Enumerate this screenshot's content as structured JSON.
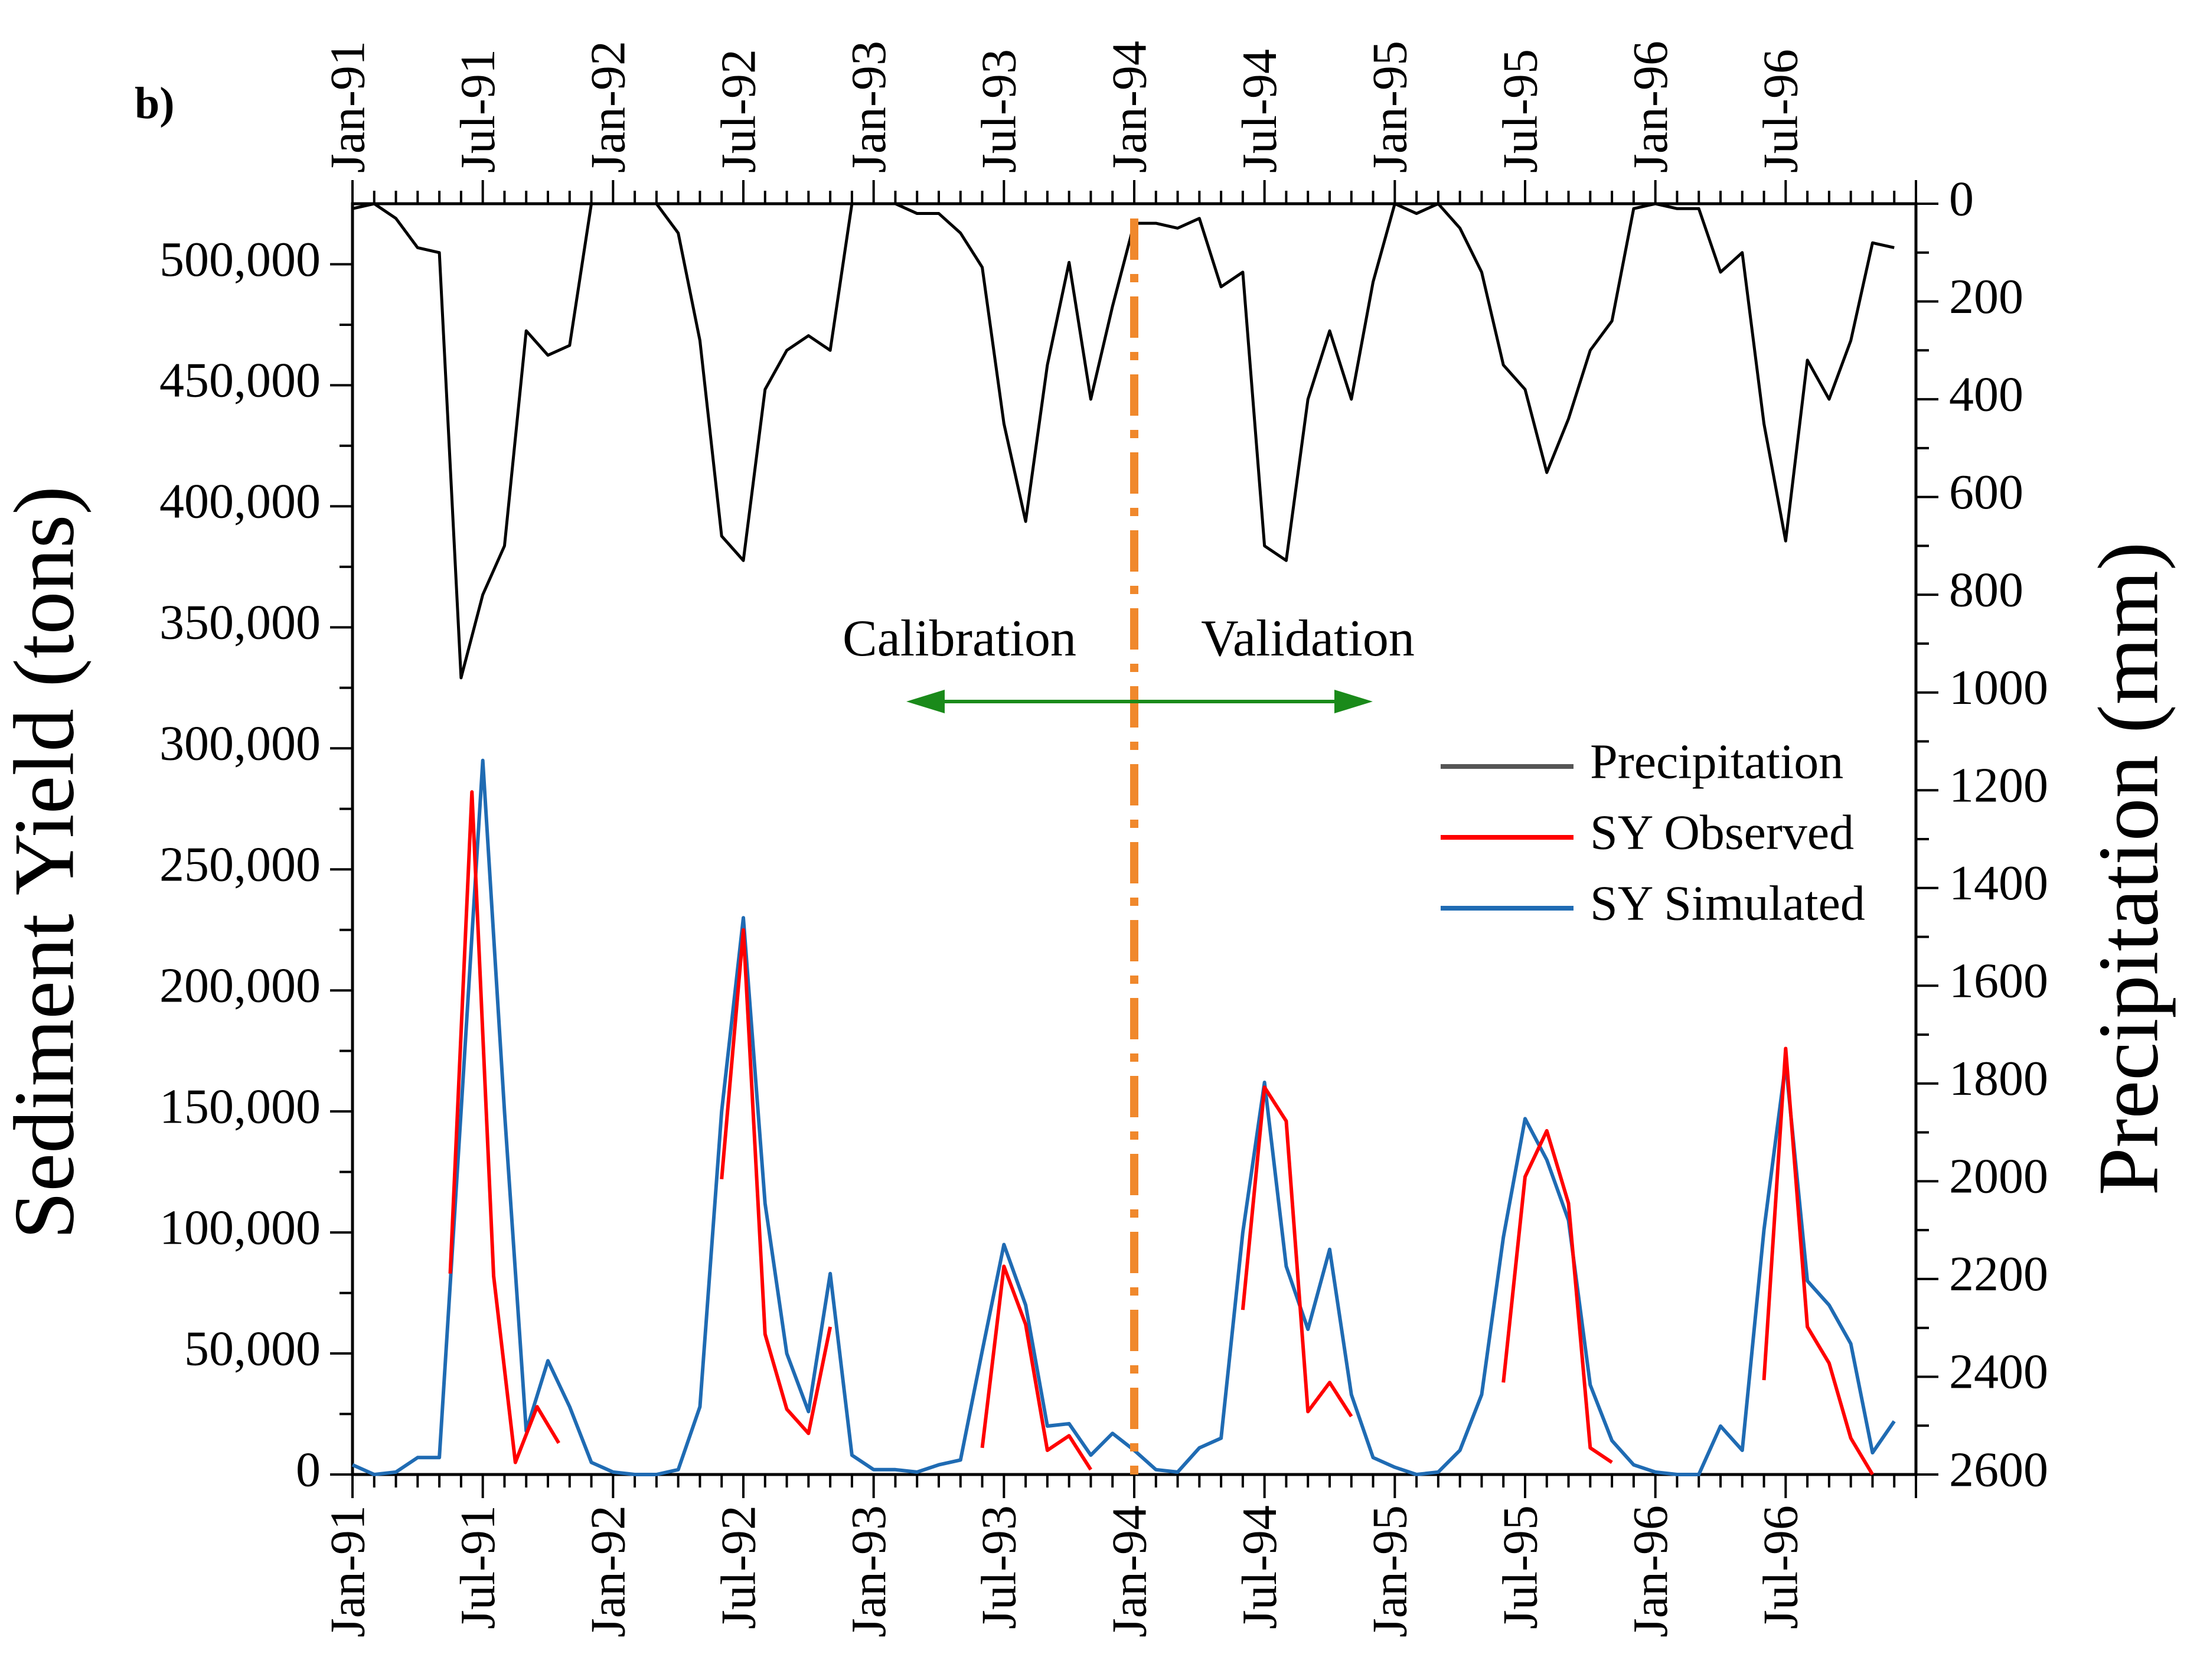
{
  "chart_data": {
    "type": "line",
    "panel_label": "b)",
    "x": [
      "Jan-91",
      "Feb-91",
      "Mar-91",
      "Apr-91",
      "May-91",
      "Jun-91",
      "Jul-91",
      "Aug-91",
      "Sep-91",
      "Oct-91",
      "Nov-91",
      "Dec-91",
      "Jan-92",
      "Feb-92",
      "Mar-92",
      "Apr-92",
      "May-92",
      "Jun-92",
      "Jul-92",
      "Aug-92",
      "Sep-92",
      "Oct-92",
      "Nov-92",
      "Dec-92",
      "Jan-93",
      "Feb-93",
      "Mar-93",
      "Apr-93",
      "May-93",
      "Jun-93",
      "Jul-93",
      "Aug-93",
      "Sep-93",
      "Oct-93",
      "Nov-93",
      "Dec-93",
      "Jan-94",
      "Feb-94",
      "Mar-94",
      "Apr-94",
      "May-94",
      "Jun-94",
      "Jul-94",
      "Aug-94",
      "Sep-94",
      "Oct-94",
      "Nov-94",
      "Dec-94",
      "Jan-95",
      "Feb-95",
      "Mar-95",
      "Apr-95",
      "May-95",
      "Jun-95",
      "Jul-95",
      "Aug-95",
      "Sep-95",
      "Oct-95",
      "Nov-95",
      "Dec-95",
      "Jan-96",
      "Feb-96",
      "Mar-96",
      "Apr-96",
      "May-96",
      "Jun-96",
      "Jul-96",
      "Aug-96",
      "Sep-96",
      "Oct-96",
      "Nov-96",
      "Dec-96"
    ],
    "x_tick_labels": [
      "Jan-91",
      "Jul-91",
      "Jan-92",
      "Jul-92",
      "Jan-93",
      "Jul-93",
      "Jan-94",
      "Jul-94",
      "Jan-95",
      "Jul-95",
      "Jan-96",
      "Jul-96"
    ],
    "x_tick_indices": [
      0,
      6,
      12,
      18,
      24,
      30,
      36,
      42,
      48,
      54,
      60,
      66
    ],
    "left_axis": {
      "label": "Sediment Yield (tons)",
      "ylim": [
        0,
        525000
      ],
      "ticks": [
        0,
        50000,
        100000,
        150000,
        200000,
        250000,
        300000,
        350000,
        400000,
        450000,
        500000
      ],
      "tick_labels": [
        "0",
        "50,000",
        "100,000",
        "150,000",
        "200,000",
        "250,000",
        "300,000",
        "350,000",
        "400,000",
        "450,000",
        "500,000"
      ]
    },
    "right_axis": {
      "label": "Precipitation (mm)",
      "ylim": [
        0,
        2600
      ],
      "inverted": true,
      "ticks": [
        0,
        200,
        400,
        600,
        800,
        1000,
        1200,
        1400,
        1600,
        1800,
        2000,
        2200,
        2400,
        2600
      ],
      "tick_labels": [
        "0",
        "200",
        "400",
        "600",
        "800",
        "1000",
        "1200",
        "1400",
        "1600",
        "1800",
        "2000",
        "2200",
        "2400",
        "2600"
      ]
    },
    "series": [
      {
        "name": "Precipitation",
        "axis": "right",
        "color": "#000000",
        "values": [
          10,
          0,
          30,
          90,
          100,
          970,
          800,
          700,
          260,
          310,
          290,
          0,
          0,
          0,
          0,
          60,
          280,
          680,
          730,
          380,
          300,
          270,
          300,
          0,
          0,
          0,
          20,
          20,
          60,
          130,
          450,
          650,
          330,
          120,
          400,
          210,
          40,
          40,
          50,
          30,
          170,
          140,
          700,
          730,
          400,
          260,
          400,
          160,
          0,
          20,
          0,
          50,
          140,
          330,
          380,
          550,
          440,
          300,
          240,
          10,
          0,
          10,
          10,
          140,
          100,
          450,
          690,
          320,
          400,
          280,
          80,
          90
        ]
      },
      {
        "name": "SY Observed",
        "axis": "left",
        "color": "#ff0000",
        "segments": [
          {
            "start": 4.5,
            "values": [
              83000,
              282000,
              82000,
              5000,
              28000,
              13000
            ]
          },
          {
            "start": 17.0,
            "values": [
              122000,
              225000,
              58000,
              27000,
              17000,
              61000
            ]
          },
          {
            "start": 29.0,
            "values": [
              11000,
              86000,
              62000,
              10000,
              16000,
              2000
            ]
          },
          {
            "start": 41.0,
            "values": [
              68000,
              160000,
              146000,
              26000,
              38000,
              24000
            ]
          },
          {
            "start": 53.0,
            "values": [
              38000,
              123000,
              142000,
              112000,
              11000,
              5000
            ]
          },
          {
            "start": 65.0,
            "values": [
              39000,
              176000,
              61000,
              46000,
              15000,
              0
            ]
          }
        ]
      },
      {
        "name": "SY Simulated",
        "axis": "left",
        "color": "#1f6bb3",
        "values": [
          4000,
          0,
          1000,
          7000,
          7000,
          150000,
          295000,
          150000,
          18000,
          47000,
          28000,
          5000,
          1000,
          0,
          0,
          2000,
          28000,
          150000,
          230000,
          112000,
          50000,
          26000,
          83000,
          8000,
          2000,
          2000,
          1000,
          4000,
          6000,
          51000,
          95000,
          70000,
          20000,
          21000,
          8000,
          17000,
          10000,
          2000,
          1000,
          11000,
          15000,
          100000,
          162000,
          86000,
          60000,
          93000,
          33000,
          7000,
          3000,
          0,
          1000,
          10000,
          33000,
          98000,
          147000,
          130000,
          105000,
          37000,
          14000,
          4000,
          1000,
          0,
          0,
          20000,
          10000,
          101000,
          170000,
          80000,
          70000,
          54000,
          9000,
          22000
        ]
      }
    ],
    "legend": [
      "Precipitation",
      "SY Observed",
      "SY Simulated"
    ],
    "legend_position": "right-middle",
    "annotations": {
      "calibration": "Calibration",
      "validation": "Validation",
      "split_at": "Jan-94",
      "split_color": "#f0882c",
      "arrow_color": "#1a8a1a"
    }
  }
}
